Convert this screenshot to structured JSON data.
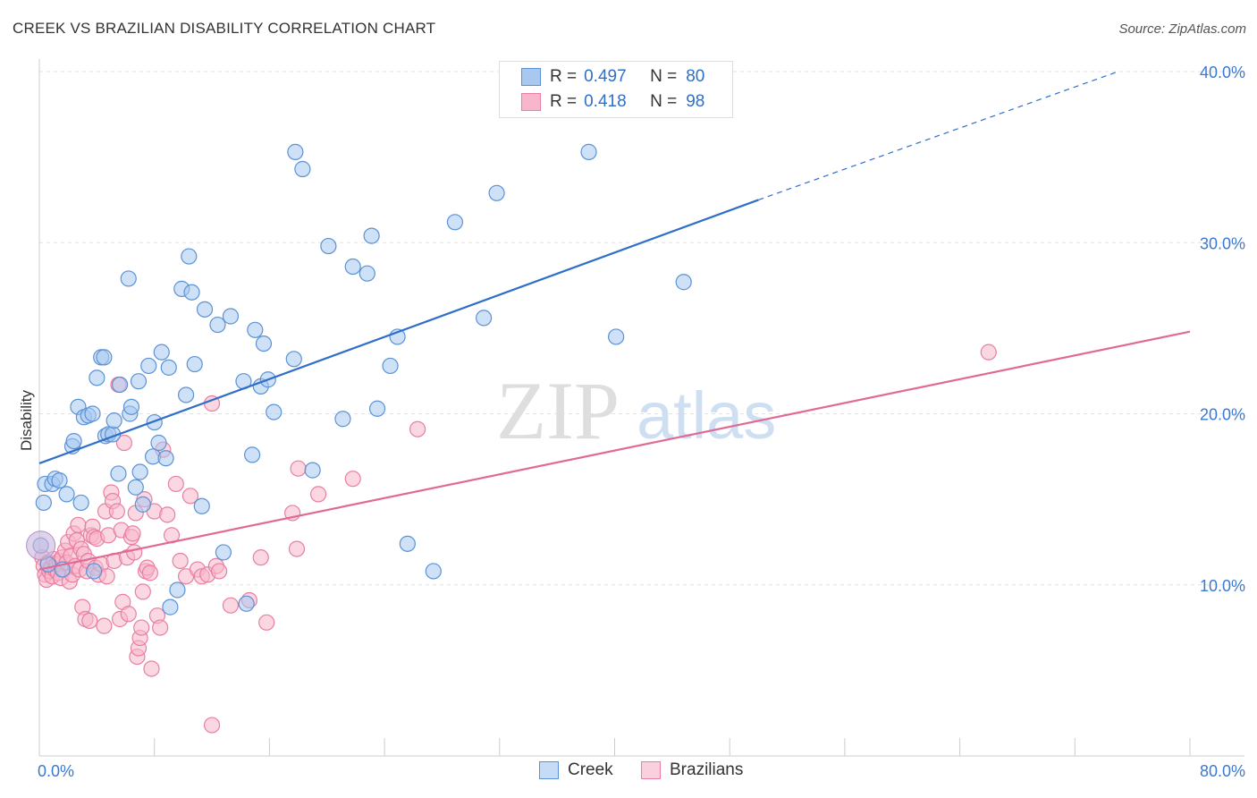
{
  "title": "CREEK VS BRAZILIAN DISABILITY CORRELATION CHART",
  "source": "Source: ZipAtlas.com",
  "watermark": {
    "zip": "ZIP",
    "atlas": "atlas"
  },
  "legend": {
    "rows": [
      {
        "r_label": "R =",
        "r_value": "0.497",
        "n_label": "N =",
        "n_value": "80"
      },
      {
        "r_label": "R =",
        "r_value": "0.418",
        "n_label": "N =",
        "n_value": "98"
      }
    ]
  },
  "bottom_legend": {
    "creek": "Creek",
    "brazilians": "Brazilians"
  },
  "colors": {
    "creek_fill": "#a8c8f0",
    "creek_stroke": "#5b92d6",
    "creek_line": "#2f6fc8",
    "braz_fill": "#f7b6cb",
    "braz_stroke": "#e87fa2",
    "braz_line": "#e06a95",
    "axis_label": "#3a78d4"
  },
  "chart_data": {
    "type": "scatter",
    "title": "CREEK VS BRAZILIAN DISABILITY CORRELATION CHART",
    "xlabel": "",
    "ylabel": "Disability",
    "xlim": [
      0,
      80
    ],
    "ylim": [
      0,
      40
    ],
    "x_tick_labels": [
      "0.0%",
      "80.0%"
    ],
    "y_ticks": [
      10,
      20,
      30,
      40
    ],
    "y_tick_labels": [
      "10.0%",
      "20.0%",
      "30.0%",
      "40.0%"
    ],
    "grid": true,
    "series": [
      {
        "name": "Creek",
        "R": 0.497,
        "N": 80,
        "trend": {
          "x0": 0,
          "y0": 17.1,
          "x1": 50,
          "y1": 32.5,
          "dash_x1": 75,
          "dash_y1": 40.0
        },
        "points": [
          [
            0.3,
            14.8
          ],
          [
            0.4,
            15.9
          ],
          [
            0.9,
            15.9
          ],
          [
            1.1,
            16.2
          ],
          [
            1.4,
            16.1
          ],
          [
            1.9,
            15.3
          ],
          [
            2.3,
            18.1
          ],
          [
            2.4,
            18.4
          ],
          [
            2.7,
            20.4
          ],
          [
            2.9,
            14.8
          ],
          [
            3.1,
            19.8
          ],
          [
            3.4,
            19.9
          ],
          [
            3.7,
            20.0
          ],
          [
            3.8,
            10.8
          ],
          [
            4.0,
            22.1
          ],
          [
            4.3,
            23.3
          ],
          [
            4.5,
            23.3
          ],
          [
            4.6,
            18.7
          ],
          [
            4.8,
            18.8
          ],
          [
            5.1,
            18.8
          ],
          [
            5.2,
            19.6
          ],
          [
            5.5,
            16.5
          ],
          [
            5.6,
            21.7
          ],
          [
            6.2,
            27.9
          ],
          [
            6.3,
            20.0
          ],
          [
            6.4,
            20.4
          ],
          [
            6.7,
            15.7
          ],
          [
            6.9,
            21.9
          ],
          [
            7.0,
            16.6
          ],
          [
            7.2,
            14.7
          ],
          [
            7.6,
            22.8
          ],
          [
            7.9,
            17.5
          ],
          [
            8.0,
            19.5
          ],
          [
            8.3,
            18.3
          ],
          [
            8.5,
            23.6
          ],
          [
            8.8,
            17.4
          ],
          [
            9.0,
            22.7
          ],
          [
            9.1,
            8.7
          ],
          [
            9.6,
            9.7
          ],
          [
            9.9,
            27.3
          ],
          [
            10.2,
            21.1
          ],
          [
            10.4,
            29.2
          ],
          [
            10.6,
            27.1
          ],
          [
            10.8,
            22.9
          ],
          [
            11.3,
            14.6
          ],
          [
            11.5,
            26.1
          ],
          [
            12.4,
            25.2
          ],
          [
            12.8,
            11.9
          ],
          [
            13.3,
            25.7
          ],
          [
            14.2,
            21.9
          ],
          [
            14.4,
            8.9
          ],
          [
            14.8,
            17.6
          ],
          [
            15.0,
            24.9
          ],
          [
            15.4,
            21.6
          ],
          [
            15.6,
            24.1
          ],
          [
            15.9,
            22.0
          ],
          [
            16.3,
            20.1
          ],
          [
            17.7,
            23.2
          ],
          [
            17.8,
            35.3
          ],
          [
            18.3,
            34.3
          ],
          [
            19.0,
            16.7
          ],
          [
            20.1,
            29.8
          ],
          [
            21.1,
            19.7
          ],
          [
            21.8,
            28.6
          ],
          [
            22.8,
            28.2
          ],
          [
            23.1,
            30.4
          ],
          [
            23.5,
            20.3
          ],
          [
            24.4,
            22.8
          ],
          [
            24.9,
            24.5
          ],
          [
            25.6,
            12.4
          ],
          [
            27.4,
            10.8
          ],
          [
            28.9,
            31.2
          ],
          [
            30.9,
            25.6
          ],
          [
            31.8,
            32.9
          ],
          [
            38.2,
            35.3
          ],
          [
            40.1,
            24.5
          ],
          [
            44.8,
            27.7
          ],
          [
            0.1,
            12.3
          ],
          [
            0.6,
            11.2
          ],
          [
            1.6,
            10.9
          ]
        ]
      },
      {
        "name": "Brazilians",
        "R": 0.418,
        "N": 98,
        "trend": {
          "x0": 0,
          "y0": 10.9,
          "x1": 80,
          "y1": 24.8
        },
        "points": [
          [
            0.2,
            11.6
          ],
          [
            0.3,
            11.1
          ],
          [
            0.4,
            10.6
          ],
          [
            0.5,
            10.3
          ],
          [
            0.6,
            11.3
          ],
          [
            0.7,
            10.8
          ],
          [
            0.8,
            11.0
          ],
          [
            0.9,
            10.5
          ],
          [
            1.0,
            11.5
          ],
          [
            1.1,
            10.9
          ],
          [
            1.2,
            11.2
          ],
          [
            1.3,
            10.7
          ],
          [
            1.4,
            11.4
          ],
          [
            1.5,
            10.4
          ],
          [
            1.6,
            11.6
          ],
          [
            1.7,
            10.9
          ],
          [
            1.8,
            12.0
          ],
          [
            1.9,
            11.3
          ],
          [
            2.0,
            12.5
          ],
          [
            2.1,
            10.2
          ],
          [
            2.2,
            11.7
          ],
          [
            2.3,
            10.6
          ],
          [
            2.4,
            13.0
          ],
          [
            2.5,
            11.1
          ],
          [
            2.6,
            12.6
          ],
          [
            2.7,
            13.5
          ],
          [
            2.8,
            10.9
          ],
          [
            2.9,
            12.1
          ],
          [
            3.0,
            8.7
          ],
          [
            3.1,
            11.8
          ],
          [
            3.2,
            8.0
          ],
          [
            3.3,
            10.8
          ],
          [
            3.4,
            11.4
          ],
          [
            3.5,
            7.9
          ],
          [
            3.6,
            12.9
          ],
          [
            3.7,
            13.4
          ],
          [
            3.8,
            12.8
          ],
          [
            3.9,
            11.0
          ],
          [
            4.0,
            12.7
          ],
          [
            4.1,
            10.6
          ],
          [
            4.3,
            11.2
          ],
          [
            4.5,
            7.6
          ],
          [
            4.6,
            14.3
          ],
          [
            4.7,
            10.5
          ],
          [
            4.8,
            12.9
          ],
          [
            5.0,
            15.4
          ],
          [
            5.1,
            14.9
          ],
          [
            5.2,
            11.4
          ],
          [
            5.4,
            14.3
          ],
          [
            5.6,
            8.0
          ],
          [
            5.7,
            13.2
          ],
          [
            5.8,
            9.0
          ],
          [
            5.9,
            18.3
          ],
          [
            6.1,
            11.6
          ],
          [
            6.2,
            8.3
          ],
          [
            6.4,
            12.8
          ],
          [
            6.5,
            13.0
          ],
          [
            6.6,
            11.9
          ],
          [
            6.7,
            14.2
          ],
          [
            6.8,
            5.8
          ],
          [
            6.9,
            6.3
          ],
          [
            7.0,
            6.9
          ],
          [
            7.1,
            7.5
          ],
          [
            7.2,
            9.6
          ],
          [
            7.3,
            15.0
          ],
          [
            7.4,
            10.8
          ],
          [
            7.5,
            11.0
          ],
          [
            7.7,
            10.7
          ],
          [
            8.0,
            14.3
          ],
          [
            8.2,
            8.2
          ],
          [
            8.4,
            7.5
          ],
          [
            8.6,
            17.9
          ],
          [
            8.9,
            14.1
          ],
          [
            9.2,
            12.9
          ],
          [
            9.5,
            15.9
          ],
          [
            9.8,
            11.4
          ],
          [
            10.2,
            10.5
          ],
          [
            10.5,
            15.2
          ],
          [
            11.0,
            10.9
          ],
          [
            11.3,
            10.5
          ],
          [
            11.7,
            10.6
          ],
          [
            12.0,
            20.6
          ],
          [
            12.3,
            11.1
          ],
          [
            12.5,
            10.8
          ],
          [
            13.3,
            8.8
          ],
          [
            14.6,
            9.1
          ],
          [
            15.4,
            11.6
          ],
          [
            15.8,
            7.8
          ],
          [
            17.6,
            14.2
          ],
          [
            17.9,
            12.1
          ],
          [
            18.0,
            16.8
          ],
          [
            19.4,
            15.3
          ],
          [
            21.8,
            16.2
          ],
          [
            26.3,
            19.1
          ],
          [
            66.0,
            23.6
          ],
          [
            12.0,
            1.8
          ],
          [
            5.5,
            21.7
          ],
          [
            7.8,
            5.1
          ]
        ]
      }
    ]
  }
}
